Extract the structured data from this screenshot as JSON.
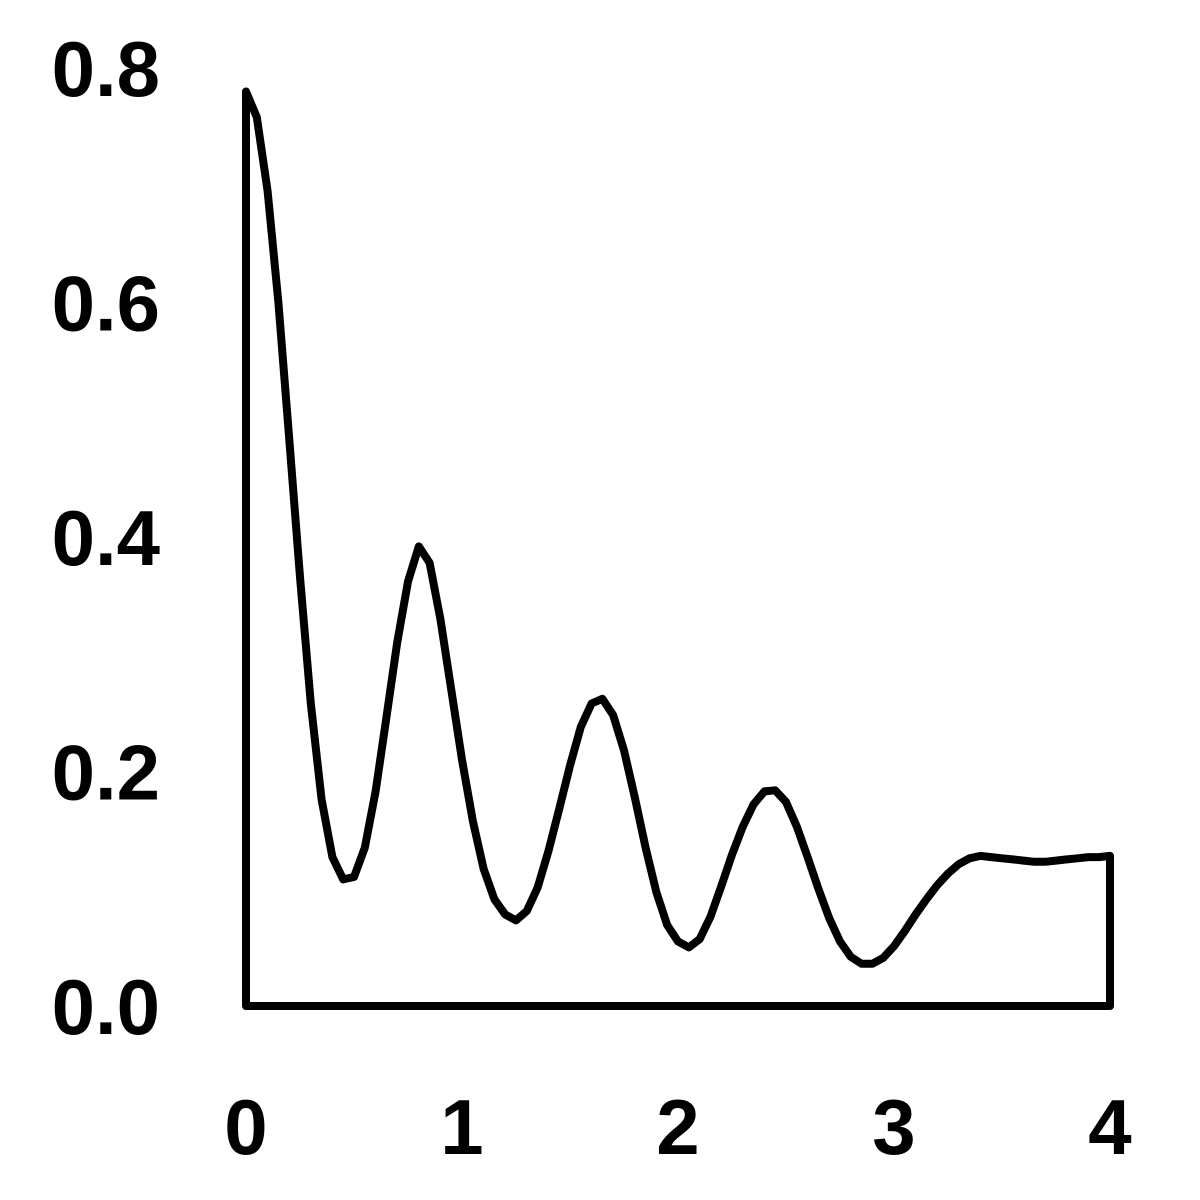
{
  "chart_data": {
    "type": "area",
    "title": "",
    "xlabel": "",
    "ylabel": "",
    "xlim": [
      0,
      4
    ],
    "ylim": [
      0,
      0.8
    ],
    "x_ticks": [
      "0",
      "1",
      "2",
      "3",
      "4"
    ],
    "y_ticks": [
      "0.0",
      "0.2",
      "0.4",
      "0.6",
      "0.8"
    ],
    "grid": false,
    "legend": "none",
    "series": [
      {
        "x": [
          0,
          0.05,
          0.1,
          0.15,
          0.2,
          0.25,
          0.3,
          0.35,
          0.4,
          0.45,
          0.5,
          0.55,
          0.6,
          0.65,
          0.7,
          0.75,
          0.8,
          0.85,
          0.9,
          0.95,
          1.0,
          1.05,
          1.1,
          1.15,
          1.2,
          1.25,
          1.3,
          1.35,
          1.4,
          1.45,
          1.5,
          1.55,
          1.6,
          1.65,
          1.7,
          1.75,
          1.8,
          1.85,
          1.9,
          1.95,
          2.0,
          2.05,
          2.1,
          2.15,
          2.2,
          2.25,
          2.3,
          2.35,
          2.4,
          2.45,
          2.5,
          2.55,
          2.6,
          2.65,
          2.7,
          2.75,
          2.8,
          2.85,
          2.9,
          2.95,
          3.0,
          3.05,
          3.1,
          3.15,
          3.2,
          3.25,
          3.3,
          3.35,
          3.4,
          3.45,
          3.5,
          3.55,
          3.6,
          3.65,
          3.7,
          3.75,
          3.8,
          3.85,
          3.9,
          3.95,
          4.0
        ],
        "y": [
          0.78,
          0.758,
          0.695,
          0.6,
          0.484,
          0.366,
          0.258,
          0.176,
          0.127,
          0.108,
          0.11,
          0.135,
          0.183,
          0.246,
          0.31,
          0.362,
          0.392,
          0.378,
          0.33,
          0.27,
          0.21,
          0.158,
          0.117,
          0.091,
          0.078,
          0.073,
          0.081,
          0.101,
          0.132,
          0.168,
          0.205,
          0.238,
          0.258,
          0.262,
          0.248,
          0.218,
          0.178,
          0.135,
          0.097,
          0.069,
          0.055,
          0.05,
          0.057,
          0.076,
          0.102,
          0.129,
          0.153,
          0.172,
          0.183,
          0.184,
          0.174,
          0.153,
          0.127,
          0.1,
          0.075,
          0.055,
          0.042,
          0.036,
          0.036,
          0.041,
          0.051,
          0.064,
          0.078,
          0.091,
          0.103,
          0.113,
          0.121,
          0.126,
          0.128,
          0.127,
          0.126,
          0.125,
          0.124,
          0.123,
          0.123,
          0.124,
          0.125,
          0.126,
          0.127,
          0.127,
          0.128
        ]
      }
    ]
  }
}
